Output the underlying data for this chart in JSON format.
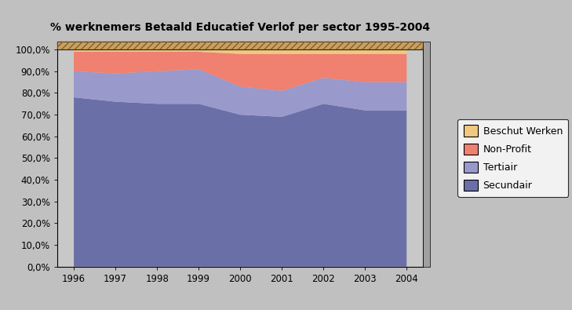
{
  "title": "% werknemers Betaald Educatief Verlof per sector 1995-2004",
  "years": [
    1996,
    1997,
    1998,
    1999,
    2000,
    2001,
    2002,
    2003,
    2004
  ],
  "secundair": [
    0.78,
    0.76,
    0.75,
    0.75,
    0.7,
    0.69,
    0.75,
    0.72,
    0.72
  ],
  "tertiair": [
    0.12,
    0.13,
    0.15,
    0.16,
    0.13,
    0.12,
    0.12,
    0.13,
    0.13
  ],
  "non_profit": [
    0.09,
    0.1,
    0.09,
    0.08,
    0.15,
    0.17,
    0.11,
    0.13,
    0.13
  ],
  "beschut_werken": [
    0.01,
    0.01,
    0.01,
    0.01,
    0.02,
    0.02,
    0.02,
    0.02,
    0.02
  ],
  "color_secundair": "#6b6fa8",
  "color_tertiair": "#9999cc",
  "color_non_profit": "#f08070",
  "color_beschut_werken": "#f0c880",
  "color_3d_top": "#c8a060",
  "color_3d_side": "#a0a0a0",
  "bg_color": "#c0c0c0",
  "plot_bg_color": "#c8c8c8",
  "ytick_labels": [
    "0,0%",
    "10,0%",
    "20,0%",
    "30,0%",
    "40,0%",
    "50,0%",
    "60,0%",
    "70,0%",
    "80,0%",
    "90,0%",
    "100,0%"
  ]
}
